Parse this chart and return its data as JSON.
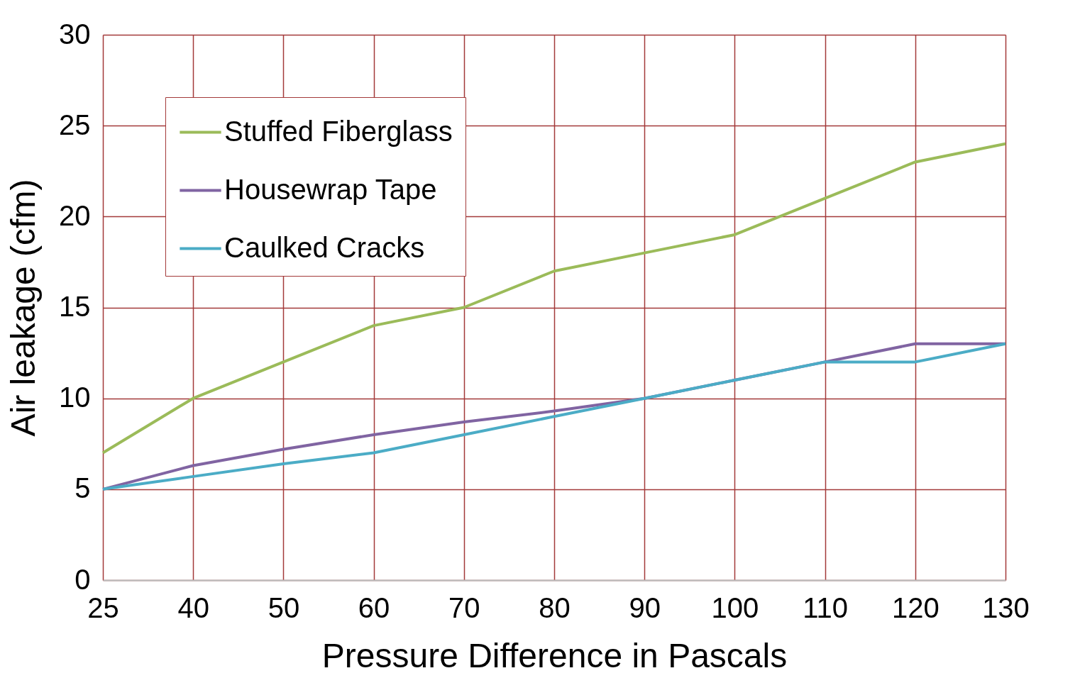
{
  "chart_data": {
    "type": "line",
    "xlabel": "Pressure Difference in Pascals",
    "ylabel": "Air leakage (cfm)",
    "categories": [
      "25",
      "40",
      "50",
      "60",
      "70",
      "80",
      "90",
      "100",
      "110",
      "120",
      "130"
    ],
    "series": [
      {
        "name": "Stuffed Fiberglass",
        "color": "#9bbb59",
        "values": [
          7,
          10,
          12,
          14,
          15,
          17,
          18,
          19,
          21,
          23,
          24
        ]
      },
      {
        "name": "Housewrap Tape",
        "color": "#8064a2",
        "values": [
          5,
          6.3,
          7.2,
          8,
          8.7,
          9.3,
          10,
          11,
          12,
          13,
          13
        ]
      },
      {
        "name": "Caulked Cracks",
        "color": "#4bacc6",
        "values": [
          5,
          5.7,
          6.4,
          7,
          8,
          9,
          10,
          11,
          12,
          12,
          13
        ]
      }
    ],
    "ylim": [
      0,
      30
    ],
    "yticks": [
      0,
      5,
      10,
      15,
      20,
      25,
      30
    ],
    "grid": true,
    "legend": "top left"
  }
}
